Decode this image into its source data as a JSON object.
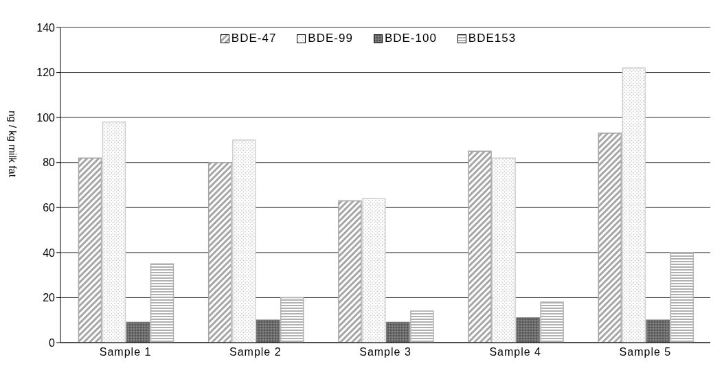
{
  "chart_data": {
    "type": "bar",
    "ylabel": "ng / kg milk fat",
    "categories": [
      "Sample 1",
      "Sample 2",
      "Sample 3",
      "Sample 4",
      "Sample 5"
    ],
    "series": [
      {
        "name": "BDE-47",
        "color": "#a6a6a6",
        "values": [
          82,
          80,
          63,
          85,
          93
        ]
      },
      {
        "name": "BDE-99",
        "color": "#d0d0d0",
        "values": [
          98,
          90,
          64,
          82,
          122
        ]
      },
      {
        "name": "BDE-100",
        "color": "#6e6e6e",
        "values": [
          9,
          10,
          9,
          11,
          10
        ]
      },
      {
        "name": "BDE153",
        "color": "#b0b0b0",
        "values": [
          35,
          20,
          14,
          18,
          40
        ]
      }
    ],
    "ylim": [
      0,
      140
    ],
    "yticks": [
      0,
      20,
      40,
      60,
      80,
      100,
      120,
      140
    ],
    "grid": "y",
    "legend": "top"
  }
}
